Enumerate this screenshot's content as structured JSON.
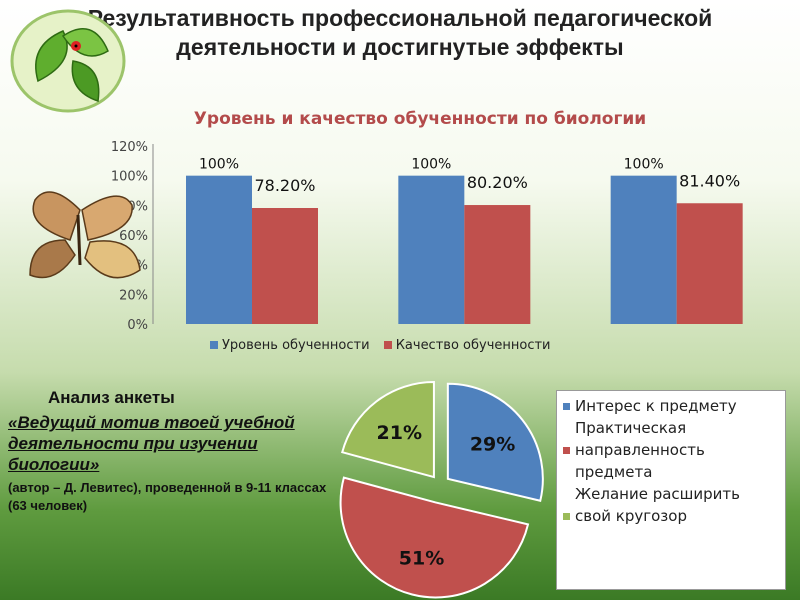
{
  "slide": {
    "title_line1": "Результативность профессиональной педагогической",
    "title_line2": "деятельности и достигнутые эффекты"
  },
  "analysis": {
    "heading": "Анализ анкеты",
    "motive": "«Ведущий мотив твоей учебной деятельности при изучении биологии»",
    "source": "(автор – Д. Левитес), проведенной в 9-11 классах (63 человек)"
  },
  "chart_data": [
    {
      "type": "bar",
      "title": "Уровень и качество обученности по биологии",
      "categories": [
        "",
        "",
        ""
      ],
      "series": [
        {
          "name": "Уровень обученности",
          "color": "#4f81bd",
          "values": [
            100,
            100,
            100
          ],
          "labels": [
            "100%",
            "100%",
            "100%"
          ]
        },
        {
          "name": "Качество обученности",
          "color": "#c0504d",
          "values": [
            78.2,
            80.2,
            81.4
          ],
          "labels": [
            "78.20%",
            "80.20%",
            "81.40%"
          ]
        }
      ],
      "ylim": [
        0,
        120
      ],
      "yticks": [
        "0%",
        "20%",
        "40%",
        "60%",
        "80%",
        "100%",
        "120%"
      ],
      "grid": false,
      "legend": "bottom"
    },
    {
      "type": "pie",
      "slices": [
        {
          "label": "Интерес к предмету",
          "value": 29,
          "text": "29%",
          "color": "#4f81bd"
        },
        {
          "label": "Практическая направленность предмета",
          "value": 51,
          "text": "51%",
          "color": "#c0504d"
        },
        {
          "label": "Желание расширить свой кругозор",
          "value": 21,
          "text": "21%",
          "color": "#9bbb59"
        }
      ],
      "legend": "right"
    }
  ]
}
